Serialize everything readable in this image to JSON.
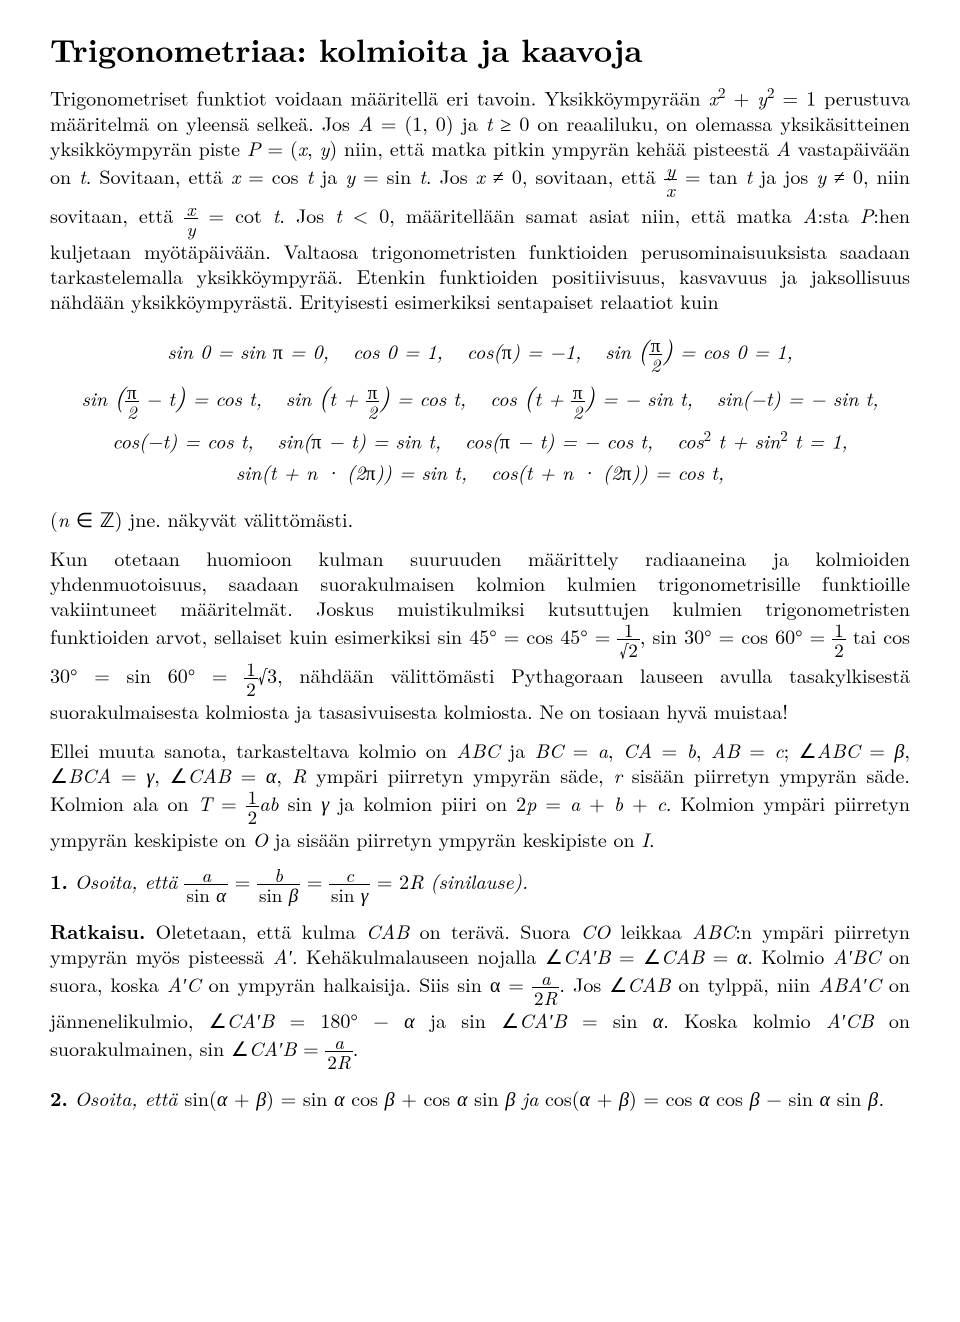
{
  "title": "Trigonometriaa: kolmioita ja kaavoja",
  "para1_a": "Trigonometriset funktiot voidaan määritellä eri tavoin. Yksikköympyrään ",
  "para1_b": " perustuva määritelmä on yleensä selkeä. Jos ",
  "para1_c": " ja ",
  "para1_d": " on reaaliluku, on olemassa yksikäsitteinen yksikköympyrän piste ",
  "para1_e": " niin, että matka pitkin ympyrän kehää pisteestä ",
  "para1_f": " vastapäivään on ",
  "para1_g": ". Sovitaan, että ",
  "para1_h": " ja ",
  "para1_i": ". Jos ",
  "para1_j": ", sovitaan, että ",
  "para1_k": " ja jos ",
  "para1_l": ", niin sovitaan, että ",
  "para1_m": ". Jos ",
  "para1_n": ", määritellään samat asiat niin, että matka ",
  "para1_o": ":sta ",
  "para1_p": ":hen kuljetaan myötäpäivään. Valtaosa trigonometristen funktioiden perusominaisuuksista saadaan tarkastelemalla yksikköympyrää. Etenkin funktioiden positiivisuus, kasvavuus ja jaksollisuus nähdään yksikköympyrästä. Erityisesti esimerkiksi sentapaiset relaatiot kuin",
  "eq1": "sin 0 = sin π = 0, cos 0 = 1, cos(π) = −1, sin (π/2) = cos 0 = 1,",
  "eq2": "sin (π/2 − t) = cos t, sin (t + π/2) = cos t, cos (t + π/2) = − sin t, sin(−t) = − sin t,",
  "eq3": "cos(−t) = cos t, sin(π − t) = sin t, cos(π − t) = − cos t, cos² t + sin² t = 1,",
  "eq4": "sin(t + n · (2π)) = sin t, cos(t + n · (2π)) = cos t,",
  "para2_a": "(",
  "para2_b": ") jne. näkyvät välittömästi.",
  "para3_a": "Kun otetaan huomioon kulman suuruuden määrittely radiaaneina ja kolmioiden yhdenmuotoisuus, saadaan suorakulmaisen kolmion kulmien trigonometrisille funktioille vakiintuneet määritelmät. Joskus muistikulmiksi kutsuttujen kulmien trigonometristen funktioiden arvot, sellaiset kuin esimerkiksi sin 45° = cos 45° = ",
  "para3_b": ", sin 30° = cos 60° = ",
  "para3_c": " tai cos 30° = sin 60° = ",
  "para3_d": ", nähdään välittömästi Pythagoraan lauseen avulla tasakylkisestä suorakulmaisesta kolmiosta ja tasasivuisesta kolmiosta. Ne on tosiaan hyvä muistaa!",
  "para4_a": "Ellei muuta sanota, tarkasteltava kolmio on ",
  "para4_b": " ja ",
  "para4_c": "; ",
  "para4_d": " ympäri piirretyn ympyrän säde, ",
  "para4_e": " sisään piirretyn ympyrän säde. Kolmion ala on ",
  "para4_f": " ja kolmion piiri on ",
  "para4_g": ". Kolmion ympäri piirretyn ympyrän keskipiste on ",
  "para4_h": " ja sisään piirretyn ympyrän keskipiste on ",
  "proof1_label": "1.",
  "proof1_a": "Osoita, että ",
  "proof1_b": " (sinilause).",
  "ratkaisu": "Ratkaisu.",
  "proof1_sol_a": " Oletetaan, että kulma ",
  "proof1_sol_b": " on terävä. Suora ",
  "proof1_sol_c": " leikkaa ",
  "proof1_sol_d": ":n ympäri piirretyn ympyrän myös pisteessä ",
  "proof1_sol_e": ". Kehäkulmalauseen nojalla ",
  "proof1_sol_f": ". Kolmio ",
  "proof1_sol_g": " on suora, koska ",
  "proof1_sol_h": " on ympyrän halkaisija. Siis sin α = ",
  "proof1_sol_i": ". Jos ",
  "proof1_sol_j": " on tylppä, niin ",
  "proof1_sol_k": " on jännenelikulmio, ",
  "proof1_sol_l": " ja sin ",
  "proof1_sol_m": ". Koska kolmio ",
  "proof1_sol_n": " on suorakulmainen, sin ",
  "proof2_label": "2.",
  "proof2_a": "Osoita, että ",
  "proof2_b": "."
}
